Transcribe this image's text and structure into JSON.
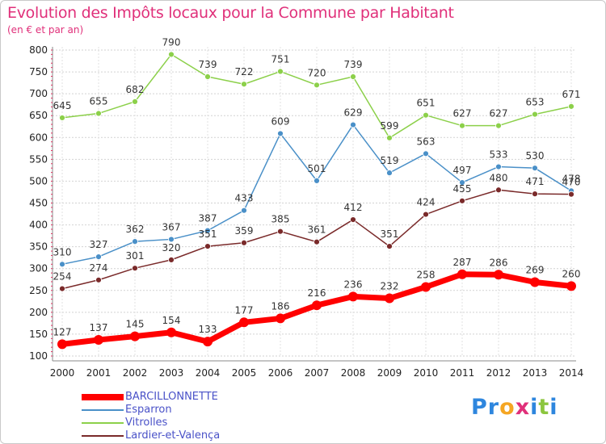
{
  "title": "Evolution des Impôts locaux pour la Commune par Habitant",
  "subtitle": "(en € et par an)",
  "logo": {
    "letters": [
      {
        "ch": "P",
        "color": "#2e86de"
      },
      {
        "ch": "r",
        "color": "#2e86de"
      },
      {
        "ch": "o",
        "color": "#f5a623"
      },
      {
        "ch": "x",
        "color": "#e0307a"
      },
      {
        "ch": "i",
        "color": "#2e86de"
      },
      {
        "ch": "t",
        "color": "#8cc63f"
      },
      {
        "ch": "i",
        "color": "#2e86de"
      }
    ]
  },
  "chart_data": {
    "type": "line",
    "title": "Evolution des Impôts locaux pour la Commune par Habitant",
    "subtitle": "(en € et par an)",
    "x": [
      "2000",
      "2001",
      "2002",
      "2003",
      "2004",
      "2005",
      "2006",
      "2007",
      "2008",
      "2009",
      "2010",
      "2011",
      "2012",
      "2013",
      "2014"
    ],
    "ylim": [
      100,
      800
    ],
    "yticks": [
      100,
      150,
      200,
      250,
      300,
      350,
      400,
      450,
      500,
      550,
      600,
      650,
      700,
      750,
      800
    ],
    "grid": true,
    "legend_position": "bottom-left",
    "series": [
      {
        "name": "BARCILLONNETTE",
        "color": "#ff0000",
        "values": [
          127,
          137,
          145,
          154,
          133,
          177,
          186,
          216,
          236,
          232,
          258,
          287,
          286,
          269,
          260
        ]
      },
      {
        "name": "Esparron",
        "color": "#4a90c8",
        "values": [
          310,
          327,
          362,
          367,
          387,
          433,
          609,
          501,
          629,
          519,
          563,
          497,
          533,
          530,
          478
        ]
      },
      {
        "name": "Vitrolles",
        "color": "#8cd04a",
        "values": [
          645,
          655,
          682,
          790,
          739,
          722,
          751,
          720,
          739,
          599,
          651,
          627,
          627,
          653,
          671
        ]
      },
      {
        "name": "Lardier-et-Valença",
        "color": "#7a2a2a",
        "values": [
          254,
          274,
          301,
          320,
          351,
          359,
          385,
          361,
          412,
          351,
          424,
          455,
          480,
          471,
          470
        ]
      }
    ]
  }
}
